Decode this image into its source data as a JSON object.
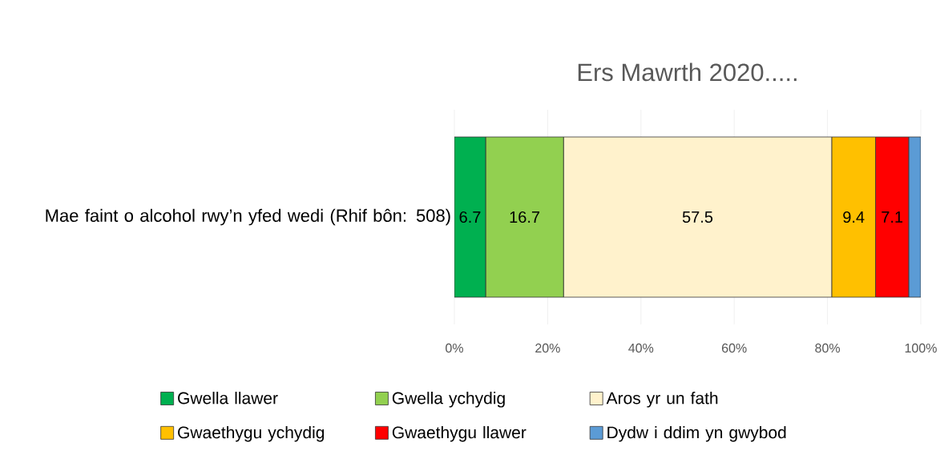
{
  "chart_data": {
    "type": "bar",
    "orientation": "horizontal",
    "stacked": true,
    "title": "Ers Mawrth 2020.....",
    "categories": [
      "Mae faint o alcohol rwy’n yfed wedi (Rhif bôn: 508)"
    ],
    "series": [
      {
        "name": "Gwella llawer",
        "color": "#00b050",
        "values": [
          6.7
        ],
        "value_labels": [
          "6.7"
        ]
      },
      {
        "name": "Gwella ychydig",
        "color": "#92d050",
        "values": [
          16.7
        ],
        "value_labels": [
          "16.7"
        ]
      },
      {
        "name": "Aros yr un fath",
        "color": "#fff2cc",
        "values": [
          57.5
        ],
        "value_labels": [
          "57.5"
        ]
      },
      {
        "name": "Gwaethygu ychydig",
        "color": "#ffc000",
        "values": [
          9.4
        ],
        "value_labels": [
          "9.4"
        ]
      },
      {
        "name": "Gwaethygu llawer",
        "color": "#ff0000",
        "values": [
          7.1
        ],
        "value_labels": [
          "7.1"
        ]
      },
      {
        "name": "Dydw i ddim yn gwybod",
        "color": "#5b9bd5",
        "values": [
          2.6
        ],
        "value_labels": [
          null
        ]
      }
    ],
    "xlim": [
      0,
      100
    ],
    "xticks": [
      {
        "value": 0,
        "label": "0%"
      },
      {
        "value": 20,
        "label": "20%"
      },
      {
        "value": 40,
        "label": "40%"
      },
      {
        "value": 60,
        "label": "60%"
      },
      {
        "value": 80,
        "label": "80%"
      },
      {
        "value": 100,
        "label": "100%"
      }
    ],
    "grid": "x",
    "legend": "bottom"
  }
}
